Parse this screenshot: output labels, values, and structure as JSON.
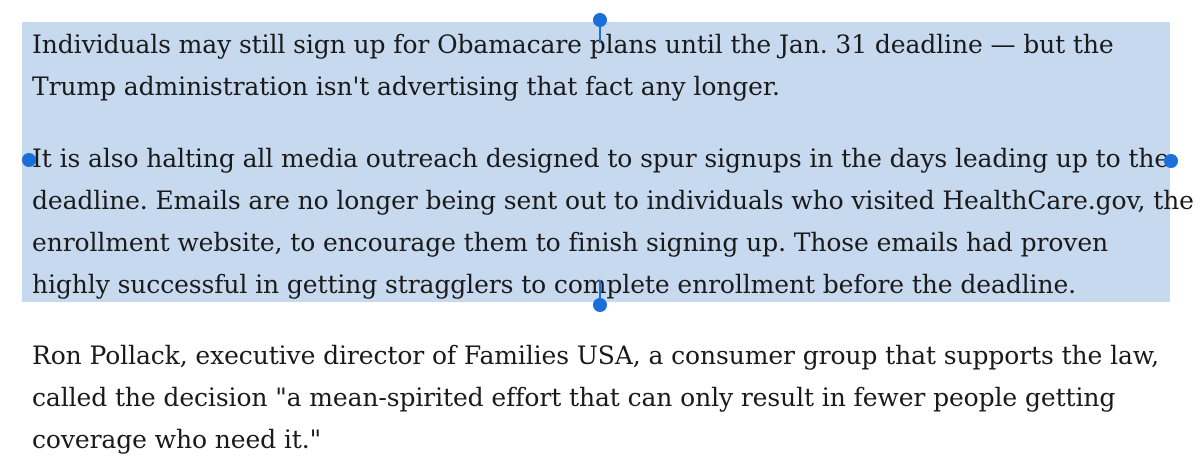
{
  "article": {
    "paragraphs": [
      {
        "lines": [
          "Individuals may still sign up for Obamacare plans until the Jan. 31 deadline — but the",
          "Trump administration isn't advertising that fact any longer."
        ]
      },
      {
        "lines": [
          "It is also halting all media outreach designed to spur signups in the days leading up to the",
          "deadline. Emails are no longer being sent out to individuals who visited HealthCare.gov, the",
          "enrollment website, to encourage them to finish signing up. Those emails had proven",
          "highly successful in getting stragglers to complete enrollment before the deadline."
        ]
      },
      {
        "lines": [
          "Ron Pollack, executive director of Families USA, a consumer group that supports the law,",
          "called the decision \"a mean-spirited effort that can only result in fewer people getting",
          "coverage who need it.\""
        ]
      }
    ]
  },
  "selection": {
    "color": "#c6d9ee",
    "handle_color": "#1a6fdb"
  }
}
